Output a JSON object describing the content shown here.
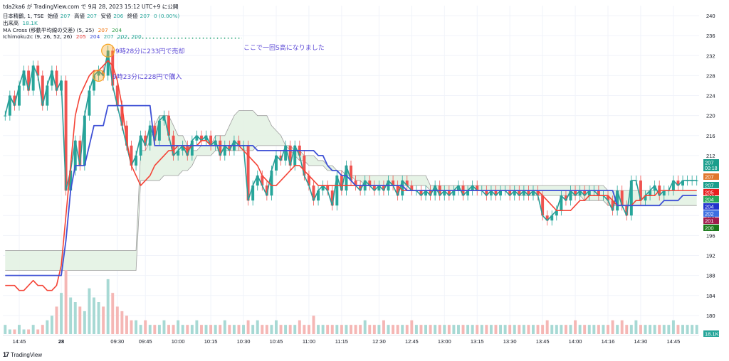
{
  "header": {
    "publish_note": "tda2ka6 が TradingView.com で 9月 28, 2023 15:12 UTC+9 に公開",
    "symbol_line": "日本精鶴, 1, TSE",
    "ohlc": [
      {
        "label": "始値",
        "value": "207"
      },
      {
        "label": "高値",
        "value": "207"
      },
      {
        "label": "安値",
        "value": "206"
      },
      {
        "label": "終値",
        "value": "207"
      },
      {
        "label": "",
        "value": "0 (0.00%)"
      }
    ],
    "volume_label": "出来高",
    "volume_value": "18.1K",
    "ma_label": "MA Cross (移動平均線の交差) (5, 25)",
    "ma_values": [
      "207",
      "204"
    ],
    "ichimoku_label": "Ichimoku2c (9, 26, 52, 26)",
    "ichimoku_values": [
      "205",
      "204",
      "207",
      "202",
      "200"
    ]
  },
  "annotations": {
    "sell": "9時28分に233円で売却",
    "buy": "9時23分に228円で購入",
    "stop": "ここで一回S高になりました"
  },
  "footer": {
    "brand": "TradingView",
    "logo": "tv-logo-icon"
  },
  "colors": {
    "up": "#26a69a",
    "down": "#ef5350",
    "close_line": "#2a9d98",
    "conv": "#f44336",
    "base": "#3f51d6",
    "span": "#8ee08e",
    "cloud": "#e3f2e3",
    "cloud_edge": "#9e9e9e",
    "sell": "#f5a623",
    "buy": "#f5a623"
  },
  "price_labels": [
    {
      "value": "207",
      "extra": "00:18",
      "color": "#1a9e8c"
    },
    {
      "value": "207",
      "color": "#e0762b"
    },
    {
      "value": "207",
      "color": "#1a9e8c"
    },
    {
      "value": "205",
      "color": "#e91e1e"
    },
    {
      "value": "204",
      "color": "#26a65b"
    },
    {
      "value": "204",
      "color": "#2233cc"
    },
    {
      "value": "202",
      "color": "#3d6fe0"
    },
    {
      "value": "201",
      "color": "#a01c4c"
    },
    {
      "value": "200",
      "color": "#1b7a1b"
    },
    {
      "value": "18.1K",
      "color": "#26a69a"
    }
  ],
  "chart_data": {
    "type": "line",
    "ylim": [
      176,
      242
    ],
    "y_ticks": [
      180,
      184,
      188,
      192,
      196,
      200,
      204,
      208,
      212,
      216,
      220,
      224,
      228,
      232,
      236,
      240
    ],
    "x_ticks": [
      "14:45",
      "28",
      "09:30",
      "09:45",
      "10:00",
      "10:15",
      "10:30",
      "10:45",
      "11:00",
      "11:15",
      "12:30",
      "12:45",
      "13:00",
      "13:15",
      "13:30",
      "13:45",
      "14:00",
      "14:16",
      "14:30",
      "14:45"
    ],
    "x_tick_index": [
      3,
      12,
      24,
      30,
      37,
      44,
      51,
      58,
      65,
      72,
      80,
      87,
      94,
      101,
      108,
      115,
      122,
      129,
      136,
      143
    ],
    "series": [
      {
        "name": "close",
        "values": [
          220,
          224,
          222,
          226,
          229,
          225,
          230,
          228,
          222,
          226,
          229,
          225,
          227,
          205,
          209,
          215,
          210,
          220,
          225,
          228,
          229,
          228,
          233,
          226,
          222,
          218,
          214,
          210,
          212,
          216,
          214,
          218,
          215,
          219,
          220,
          216,
          212,
          213,
          214,
          212,
          215,
          216,
          215,
          216,
          214,
          215,
          212,
          214,
          213,
          215,
          214,
          214,
          203,
          206,
          208,
          206,
          204,
          209,
          212,
          211,
          214,
          210,
          214,
          212,
          208,
          206,
          203,
          205,
          206,
          205,
          202,
          208,
          205,
          210,
          207,
          206,
          205,
          207,
          206,
          205,
          206,
          205,
          207,
          206,
          204,
          207,
          206,
          205,
          205,
          204,
          205,
          204,
          206,
          204,
          205,
          204,
          205,
          206,
          204,
          205,
          206,
          205,
          205,
          204,
          205,
          204,
          205,
          205,
          204,
          205,
          204,
          205,
          204,
          205,
          204,
          200,
          199,
          200,
          201,
          204,
          203,
          205,
          204,
          205,
          204,
          205,
          205,
          204,
          204,
          203,
          201,
          205,
          202,
          200,
          207,
          207,
          203,
          204,
          205,
          206,
          204,
          205,
          205,
          207,
          206,
          207,
          207,
          207,
          207
        ]
      },
      {
        "name": "conversion",
        "values": [
          186,
          186,
          186,
          185,
          185,
          186,
          187,
          186,
          186,
          185,
          185,
          186,
          190,
          200,
          210,
          220,
          224,
          226,
          228,
          229,
          229,
          230,
          231,
          230,
          227,
          222,
          215,
          210,
          208,
          206,
          207,
          208,
          210,
          211,
          212,
          213,
          213,
          214,
          214,
          213,
          214,
          214,
          215,
          215,
          214,
          214,
          214,
          214,
          214,
          214,
          214,
          213,
          212,
          211,
          210,
          208,
          207,
          206,
          206,
          207,
          208,
          209,
          210,
          210,
          209,
          208,
          207,
          206,
          206,
          206,
          206,
          206,
          206,
          206,
          206,
          206,
          206,
          206,
          206,
          206,
          206,
          206,
          206,
          206,
          206,
          205,
          205,
          205,
          205,
          205,
          205,
          205,
          205,
          205,
          205,
          205,
          205,
          205,
          205,
          205,
          205,
          205,
          205,
          205,
          205,
          205,
          205,
          205,
          205,
          205,
          205,
          205,
          205,
          205,
          205,
          204,
          203,
          202,
          201,
          201,
          201,
          201,
          202,
          203,
          203,
          204,
          204,
          204,
          204,
          204,
          203,
          202,
          202,
          202,
          202,
          203,
          203,
          204,
          204,
          204,
          205,
          205,
          205,
          205,
          205,
          205,
          205,
          205,
          205
        ]
      },
      {
        "name": "base",
        "values": [
          188,
          188,
          188,
          188,
          188,
          188,
          188,
          188,
          188,
          188,
          188,
          188,
          188,
          195,
          205,
          210,
          210,
          210,
          214,
          218,
          218,
          218,
          222,
          222,
          222,
          222,
          222,
          222,
          222,
          222,
          222,
          222,
          214,
          214,
          214,
          214,
          214,
          214,
          214,
          214,
          214,
          214,
          214,
          214,
          214,
          214,
          214,
          214,
          214,
          214,
          214,
          214,
          214,
          214,
          213,
          213,
          213,
          213,
          213,
          213,
          213,
          213,
          213,
          213,
          213,
          213,
          213,
          212,
          212,
          210,
          209,
          209,
          208,
          208,
          207,
          206,
          206,
          206,
          206,
          206,
          206,
          206,
          206,
          206,
          206,
          206,
          205,
          205,
          205,
          205,
          205,
          205,
          205,
          205,
          205,
          205,
          205,
          205,
          205,
          205,
          205,
          205,
          205,
          205,
          205,
          205,
          205,
          205,
          205,
          205,
          205,
          205,
          205,
          205,
          205,
          205,
          205,
          205,
          205,
          205,
          205,
          205,
          205,
          205,
          205,
          205,
          205,
          205,
          205,
          205,
          205,
          202,
          202,
          202,
          202,
          202,
          202,
          202,
          202,
          202,
          202,
          203,
          203,
          203,
          203,
          204,
          204,
          204,
          204
        ]
      },
      {
        "name": "cloud_upper",
        "values": [
          193,
          193,
          193,
          193,
          193,
          193,
          193,
          193,
          193,
          193,
          193,
          193,
          193,
          193,
          193,
          193,
          193,
          193,
          193,
          193,
          193,
          193,
          193,
          193,
          193,
          193,
          193,
          193,
          193,
          213,
          213,
          215,
          218,
          220,
          220,
          220,
          218,
          216,
          216,
          214,
          213,
          213,
          214,
          214,
          214,
          216,
          216,
          216,
          218,
          220,
          221,
          221,
          221,
          221,
          220,
          220,
          220,
          218,
          217,
          216,
          214,
          213,
          212,
          211,
          211,
          210,
          210,
          210,
          210,
          209,
          209,
          209,
          209,
          208,
          208,
          208,
          208,
          208,
          208,
          208,
          208,
          208,
          208,
          208,
          208,
          208,
          208,
          208,
          208,
          208,
          208,
          206,
          206,
          206,
          206,
          206,
          206,
          206,
          206,
          206,
          206,
          206,
          206,
          206,
          206,
          206,
          206,
          206,
          206,
          206,
          206,
          206,
          206,
          206,
          206,
          206,
          206,
          206,
          206,
          206,
          206,
          206,
          206,
          206,
          206,
          206,
          206,
          206,
          206,
          205,
          205,
          205,
          205,
          205,
          205,
          205,
          205,
          205,
          205,
          205,
          205,
          205,
          205,
          205,
          205,
          205,
          205,
          205,
          205
        ]
      },
      {
        "name": "cloud_lower",
        "values": [
          189,
          189,
          189,
          189,
          189,
          189,
          189,
          189,
          189,
          189,
          189,
          189,
          189,
          189,
          189,
          189,
          189,
          189,
          189,
          189,
          189,
          189,
          189,
          189,
          189,
          189,
          189,
          189,
          189,
          207,
          207,
          207,
          207,
          207,
          208,
          208,
          208,
          208,
          209,
          209,
          210,
          212,
          212,
          212,
          212,
          213,
          213,
          213,
          213,
          213,
          213,
          213,
          213,
          213,
          214,
          214,
          214,
          214,
          214,
          214,
          214,
          214,
          213,
          213,
          212,
          212,
          212,
          211,
          211,
          210,
          210,
          209,
          209,
          208,
          208,
          207,
          207,
          206,
          206,
          206,
          206,
          206,
          206,
          206,
          206,
          206,
          206,
          206,
          206,
          206,
          206,
          205,
          205,
          205,
          205,
          205,
          205,
          205,
          205,
          205,
          205,
          205,
          205,
          205,
          205,
          205,
          205,
          205,
          205,
          205,
          204,
          204,
          204,
          204,
          204,
          204,
          204,
          204,
          204,
          204,
          204,
          204,
          204,
          204,
          203,
          203,
          203,
          203,
          203,
          202,
          202,
          202,
          202,
          202,
          202,
          202,
          202,
          202,
          202,
          202,
          202,
          202,
          202,
          202,
          202,
          202,
          202,
          202,
          202
        ]
      }
    ],
    "volume": [
      2,
      1,
      1,
      2,
      1,
      1,
      2,
      1,
      2,
      3,
      4,
      6,
      9,
      14,
      8,
      7,
      6,
      5,
      10,
      8,
      7,
      6,
      12,
      9,
      6,
      5,
      4,
      3,
      3,
      2,
      3,
      2,
      2,
      2,
      3,
      2,
      2,
      3,
      2,
      2,
      2,
      3,
      2,
      2,
      2,
      2,
      2,
      3,
      2,
      2,
      2,
      2,
      3,
      2,
      3,
      2,
      2,
      2,
      3,
      2,
      2,
      2,
      2,
      3,
      2,
      2,
      4,
      2,
      2,
      2,
      2,
      2,
      2,
      2,
      2,
      2,
      2,
      3,
      2,
      2,
      2,
      3,
      2,
      2,
      2,
      2,
      2,
      3,
      2,
      2,
      2,
      2,
      2,
      2,
      2,
      2,
      2,
      2,
      2,
      2,
      2,
      2,
      2,
      2,
      2,
      2,
      2,
      2,
      2,
      2,
      2,
      2,
      2,
      2,
      2,
      2,
      3,
      2,
      2,
      2,
      2,
      2,
      3,
      2,
      2,
      2,
      2,
      2,
      2,
      2,
      3,
      2,
      3,
      2,
      2,
      3,
      2,
      2,
      2,
      2,
      2,
      2,
      2,
      3,
      2,
      2,
      2,
      2,
      2
    ],
    "volume_last": "18.1K",
    "markers": {
      "sell_price": 233,
      "buy_price": 228,
      "limit_line": 235.5
    }
  }
}
